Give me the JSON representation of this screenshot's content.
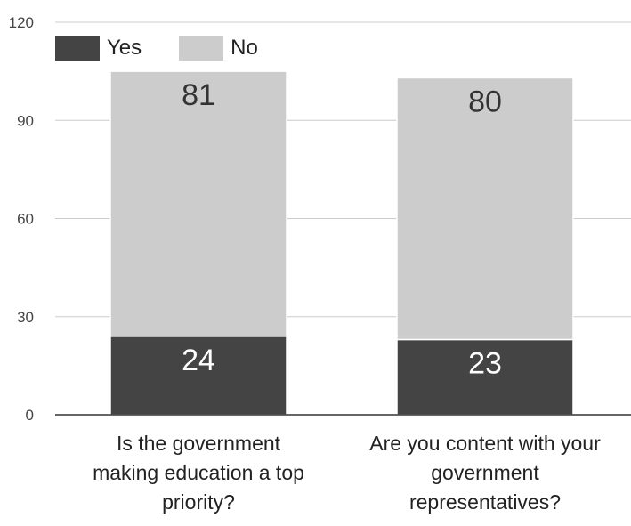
{
  "chart_data": {
    "type": "bar",
    "stacked": true,
    "categories": [
      [
        "Is the government",
        "making education a top",
        "priority?"
      ],
      [
        "Are you content with your",
        "government",
        "representatives?"
      ]
    ],
    "series": [
      {
        "name": "Yes",
        "values": [
          24,
          23
        ],
        "color": "#444444"
      },
      {
        "name": "No",
        "values": [
          81,
          80
        ],
        "color": "#cccccc"
      }
    ],
    "ylim": [
      0,
      120
    ],
    "yticks": [
      0,
      30,
      60,
      90,
      120
    ],
    "grid": true,
    "legend_position": "top-left",
    "data_labels": true
  }
}
